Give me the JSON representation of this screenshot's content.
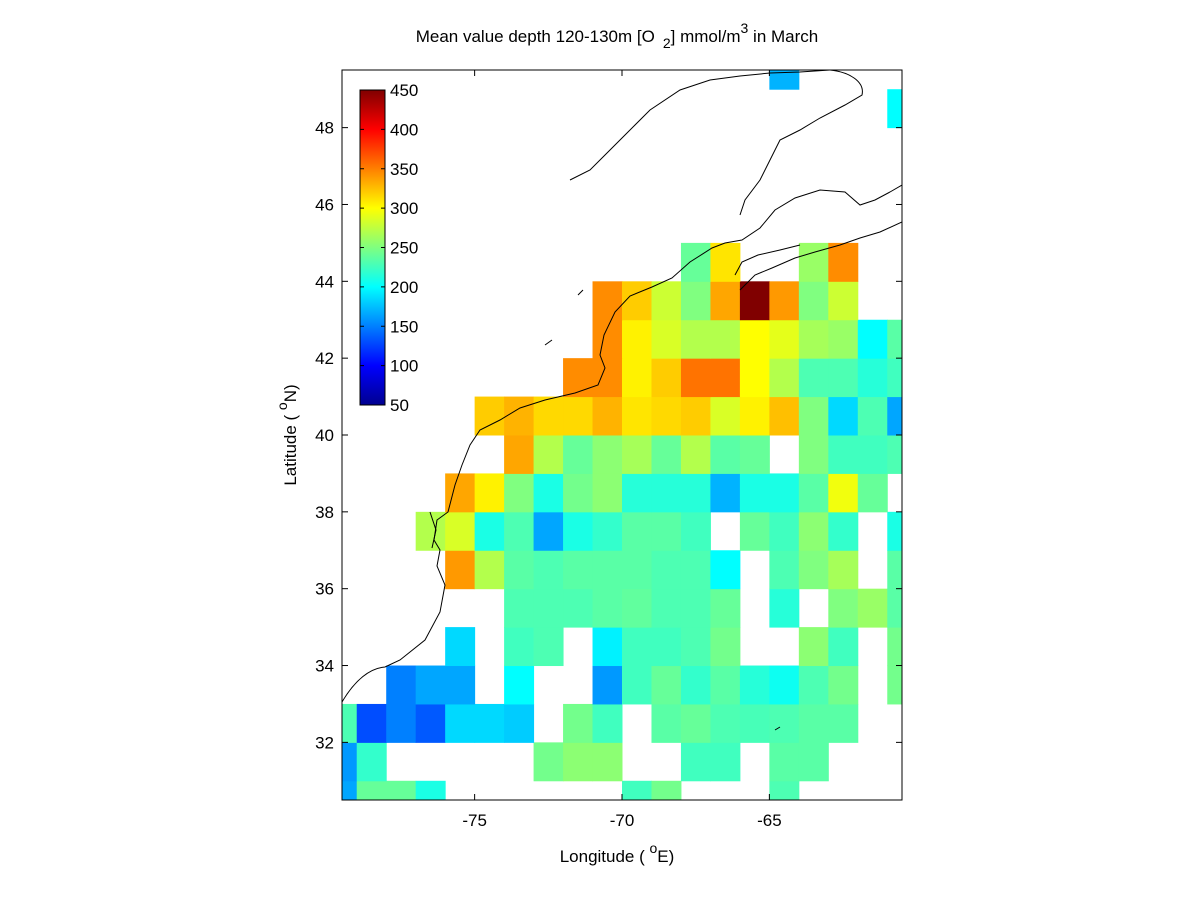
{
  "chart_data": {
    "type": "heatmap",
    "title": {
      "main": "Mean value depth 120-130m [O",
      "sub": "2",
      "mid": "] mmol/m",
      "sup": "3",
      "end": " in March"
    },
    "xlabel": {
      "main": "Longitude ( ",
      "sup": "o",
      "end": "E)"
    },
    "ylabel": {
      "main": "Latitude ( ",
      "sup": "o",
      "end": "N)"
    },
    "xlim": [
      -79.5,
      -60.5
    ],
    "ylim": [
      30.5,
      49.5
    ],
    "xticks": [
      -75,
      -70,
      -65
    ],
    "yticks": [
      32,
      34,
      36,
      38,
      40,
      42,
      44,
      46,
      48
    ],
    "clim": [
      50,
      450
    ],
    "cticks": [
      50,
      100,
      150,
      200,
      250,
      300,
      350,
      400,
      450
    ],
    "colormap": "jet",
    "cell_size": 1,
    "lon_cells": [
      -80,
      -79,
      -78,
      -77,
      -76,
      -75,
      -74,
      -73,
      -72,
      -71,
      -70,
      -69,
      -68,
      -67,
      -66,
      -65,
      -64,
      -63,
      -62,
      -61
    ],
    "lat_cells": [
      30,
      31,
      32,
      33,
      34,
      35,
      36,
      37,
      38,
      39,
      40,
      41,
      42,
      43,
      44,
      48,
      49
    ],
    "values": [
      [
        165,
        240,
        240,
        210,
        null,
        null,
        null,
        null,
        null,
        null,
        225,
        245,
        null,
        null,
        null,
        230,
        null,
        null,
        null,
        null
      ],
      [
        160,
        220,
        null,
        null,
        null,
        null,
        null,
        245,
        255,
        255,
        null,
        null,
        225,
        225,
        null,
        235,
        235,
        null,
        null,
        null
      ],
      [
        230,
        130,
        150,
        135,
        185,
        185,
        180,
        null,
        245,
        225,
        null,
        235,
        240,
        230,
        228,
        230,
        235,
        235,
        null,
        null
      ],
      [
        null,
        null,
        150,
        165,
        165,
        null,
        200,
        null,
        null,
        160,
        225,
        240,
        220,
        235,
        215,
        205,
        230,
        245,
        null,
        245
      ],
      [
        null,
        null,
        null,
        null,
        185,
        null,
        225,
        230,
        null,
        195,
        225,
        225,
        230,
        245,
        null,
        null,
        255,
        225,
        null,
        245
      ],
      [
        null,
        null,
        null,
        null,
        null,
        null,
        230,
        230,
        230,
        235,
        238,
        230,
        230,
        240,
        null,
        215,
        null,
        250,
        260,
        235
      ],
      [
        null,
        null,
        null,
        null,
        340,
        270,
        235,
        230,
        235,
        235,
        235,
        230,
        230,
        200,
        null,
        230,
        250,
        265,
        null,
        235
      ],
      [
        null,
        null,
        null,
        270,
        285,
        210,
        230,
        165,
        210,
        220,
        235,
        235,
        225,
        null,
        240,
        225,
        255,
        220,
        null,
        210
      ],
      [
        null,
        null,
        null,
        null,
        335,
        305,
        250,
        210,
        245,
        255,
        215,
        215,
        215,
        170,
        210,
        210,
        235,
        295,
        240,
        null
      ],
      [
        null,
        null,
        null,
        null,
        null,
        null,
        335,
        270,
        240,
        255,
        265,
        240,
        270,
        235,
        240,
        null,
        250,
        225,
        225,
        230
      ],
      [
        null,
        null,
        null,
        null,
        null,
        320,
        330,
        315,
        315,
        330,
        310,
        315,
        320,
        285,
        305,
        325,
        250,
        185,
        230,
        165
      ],
      [
        null,
        null,
        null,
        null,
        null,
        null,
        null,
        null,
        345,
        345,
        305,
        320,
        355,
        355,
        300,
        270,
        230,
        230,
        215,
        225
      ],
      [
        null,
        null,
        null,
        null,
        null,
        null,
        null,
        null,
        null,
        345,
        305,
        285,
        270,
        270,
        300,
        290,
        265,
        260,
        200,
        235
      ],
      [
        null,
        null,
        null,
        null,
        null,
        null,
        null,
        null,
        null,
        345,
        320,
        280,
        250,
        335,
        450,
        340,
        250,
        280,
        null,
        null
      ],
      [
        null,
        null,
        null,
        null,
        null,
        null,
        null,
        null,
        null,
        null,
        null,
        null,
        240,
        310,
        null,
        null,
        260,
        345,
        null,
        null
      ],
      [
        null,
        null,
        null,
        null,
        null,
        null,
        null,
        null,
        null,
        null,
        null,
        null,
        null,
        null,
        null,
        null,
        null,
        null,
        null,
        200
      ],
      [
        null,
        null,
        null,
        null,
        null,
        null,
        null,
        null,
        null,
        null,
        null,
        null,
        null,
        null,
        null,
        170,
        null,
        null,
        null,
        null
      ]
    ]
  }
}
